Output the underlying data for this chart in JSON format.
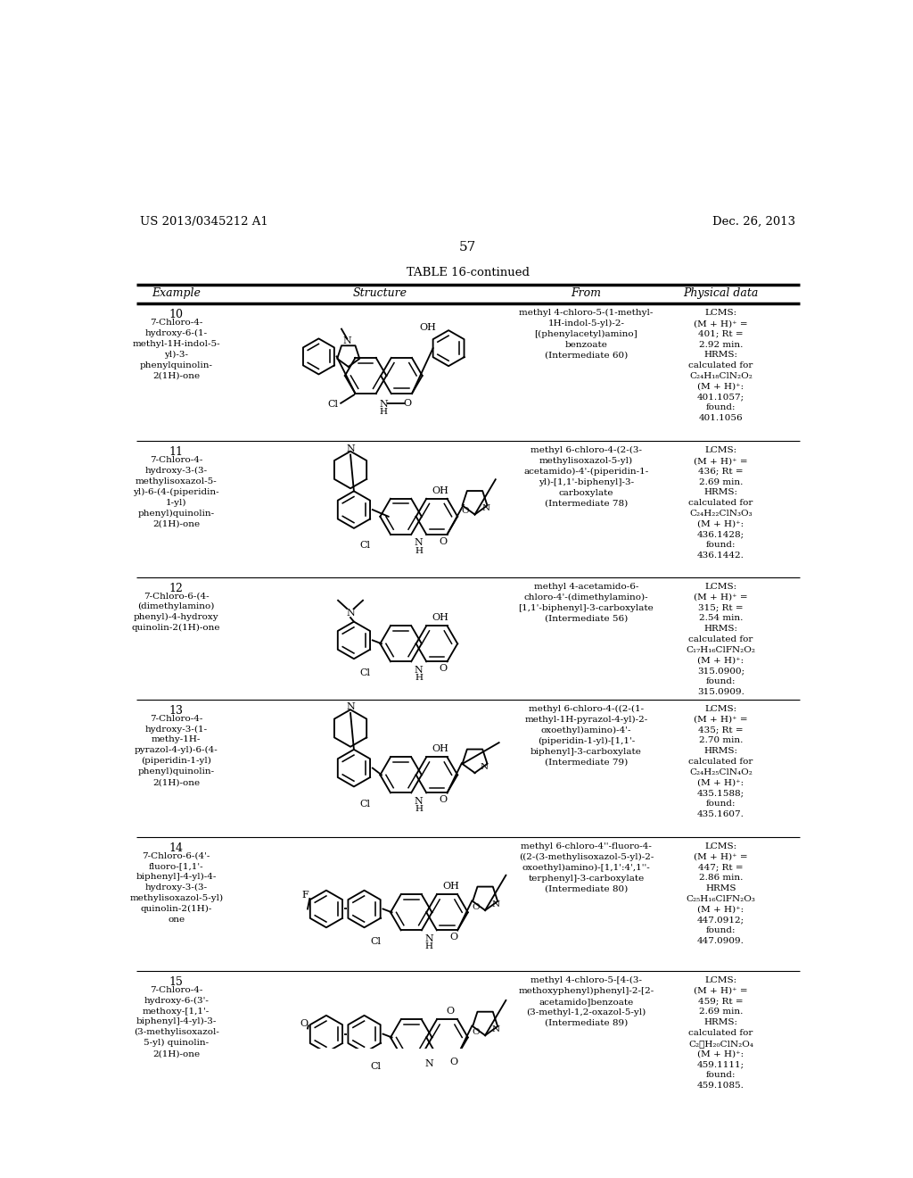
{
  "page_header_left": "US 2013/0345212 A1",
  "page_header_right": "Dec. 26, 2013",
  "page_number": "57",
  "table_title": "TABLE 16-continued",
  "col_headers": [
    "Example",
    "Structure",
    "From",
    "Physical data"
  ],
  "background_color": "#ffffff",
  "rows": [
    {
      "num": "10",
      "name": "7-Chloro-4-\nhydroxy-6-(1-\nmethyl-1H-indol-5-\nyl)-3-\nphenylquinolin-\n2(1H)-one",
      "from": "methyl 4-chloro-5-(1-methyl-\n1H-indol-5-yl)-2-\n[(phenylacetyl)amino]\nbenzoate\n(Intermediate 60)",
      "phys": "LCMS:\n(M + H)⁺ =\n401; Rt =\n2.92 min.\nHRMS:\ncalculated for\nC₂₄H₁₈ClN₂O₂\n(M + H)⁺:\n401.1057;\nfound:\n401.1056"
    },
    {
      "num": "11",
      "name": "7-Chloro-4-\nhydroxy-3-(3-\nmethylisoxazol-5-\nyl)-6-(4-(piperidin-\n1-yl)\nphenyl)quinolin-\n2(1H)-one",
      "from": "methyl 6-chloro-4-(2-(3-\nmethylisoxazol-5-yl)\nacetamido)-4'-(piperidin-1-\nyl)-[1,1'-biphenyl]-3-\ncarboxylate\n(Intermediate 78)",
      "phys": "LCMS:\n(M + H)⁺ =\n436; Rt =\n2.69 min.\nHRMS:\ncalculated for\nC₂₄H₂₂ClN₃O₃\n(M + H)⁺:\n436.1428;\nfound:\n436.1442."
    },
    {
      "num": "12",
      "name": "7-Chloro-6-(4-\n(dimethylamino)\nphenyl)-4-hydroxy\nquinolin-2(1H)-one",
      "from": "methyl 4-acetamido-6-\nchloro-4'-(dimethylamino)-\n[1,1'-biphenyl]-3-carboxylate\n(Intermediate 56)",
      "phys": "LCMS:\n(M + H)⁺ =\n315; Rt =\n2.54 min.\nHRMS:\ncalculated for\nC₁₇H₁₆ClFN₂O₂\n(M + H)⁺:\n315.0900;\nfound:\n315.0909."
    },
    {
      "num": "13",
      "name": "7-Chloro-4-\nhydroxy-3-(1-\nmethy-1H-\npyrazol-4-yl)-6-(4-\n(piperidin-1-yl)\nphenyl)quinolin-\n2(1H)-one",
      "from": "methyl 6-chloro-4-((2-(1-\nmethyl-1H-pyrazol-4-yl)-2-\noxoethyl)amino)-4'-\n(piperidin-1-yl)-[1,1'-\nbiphenyl]-3-carboxylate\n(Intermediate 79)",
      "phys": "LCMS:\n(M + H)⁺ =\n435; Rt =\n2.70 min.\nHRMS:\ncalculated for\nC₂₄H₂₅ClN₄O₂\n(M + H)⁺:\n435.1588;\nfound:\n435.1607."
    },
    {
      "num": "14",
      "name": "7-Chloro-6-(4'-\nfluoro-[1,1'-\nbiphenyl]-4-yl)-4-\nhydroxy-3-(3-\nmethylisoxazol-5-yl)\nquinolin-2(1H)-\none",
      "from": "methyl 6-chloro-4''-fluoro-4-\n((2-(3-methylisoxazol-5-yl)-2-\noxoethyl)amino)-[1,1':4',1''-\nterphenyl]-3-carboxylate\n(Intermediate 80)",
      "phys": "LCMS:\n(M + H)⁺ =\n447; Rt =\n2.86 min.\nHRMS\nC₂₅H₁₆ClFN₂O₃\n(M + H)⁺:\n447.0912;\nfound:\n447.0909."
    },
    {
      "num": "15",
      "name": "7-Chloro-4-\nhydroxy-6-(3'-\nmethoxy-[1,1'-\nbiphenyl]-4-yl)-3-\n(3-methylisoxazol-\n5-yl) quinolin-\n2(1H)-one",
      "from": "methyl 4-chloro-5-[4-(3-\nmethoxyphenyl)phenyl]-2-[2-\nacetamido]benzoate\n(3-methyl-1,2-oxazol-5-yl)\n(Intermediate 89)",
      "phys": "LCMS:\n(M + H)⁺ =\n459; Rt =\n2.69 min.\nHRMS:\ncalculated for\nC₂⁦H₂₀ClN₂O₄\n(M + H)⁺:\n459.1111;\nfound:\n459.1085."
    }
  ]
}
